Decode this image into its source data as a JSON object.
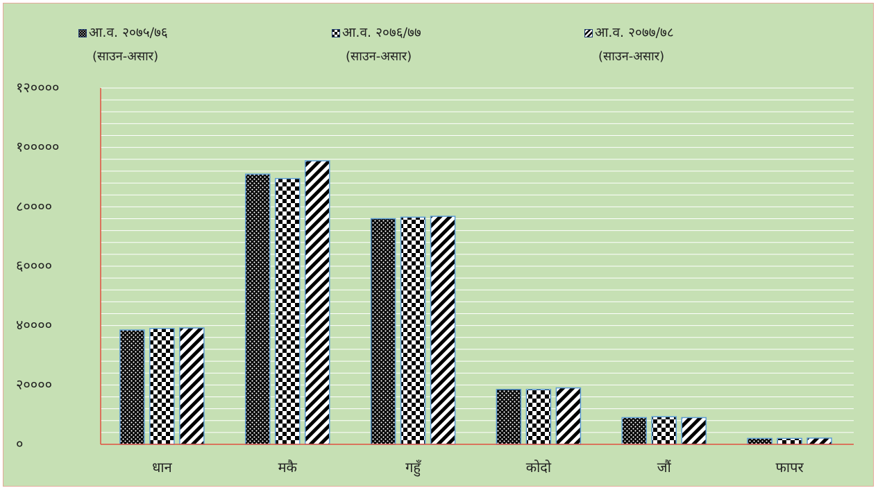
{
  "chart_data": {
    "type": "bar",
    "title": "",
    "xlabel": "",
    "ylabel": "",
    "legend_position": "top",
    "ylim": [
      0,
      120000
    ],
    "yticks": [
      0,
      20000,
      40000,
      60000,
      80000,
      100000,
      120000
    ],
    "ytick_labels": [
      "०",
      "२००००",
      "४००००",
      "६००००",
      "८००००",
      "१०००००",
      "१२००००"
    ],
    "categories": [
      "धान",
      "मकै",
      "गहुँ",
      "कोदो",
      "जौं",
      "फापर"
    ],
    "series": [
      {
        "name": "आ.व. २०७५/७६",
        "subname": "(साउन-असार)",
        "pattern": "dots",
        "values": [
          38500,
          91000,
          76000,
          18500,
          9000,
          2000
        ]
      },
      {
        "name": "आ.व. २०७६/७७",
        "subname": "(साउन-असार)",
        "pattern": "checker",
        "values": [
          39000,
          89500,
          76500,
          18500,
          9300,
          2000
        ]
      },
      {
        "name": "आ.व. २०७७/७८",
        "subname": "(साउन-असार)",
        "pattern": "diagonal",
        "values": [
          39200,
          95500,
          76800,
          19000,
          9000,
          2100
        ]
      }
    ],
    "grid": true,
    "colors": {
      "background": "#c6e0b4",
      "grid": "#ffffff",
      "axis": "#e05040",
      "bar_border": "#5b9bd5",
      "pattern_dark": "#000000",
      "pattern_light": "#ffffff"
    }
  }
}
